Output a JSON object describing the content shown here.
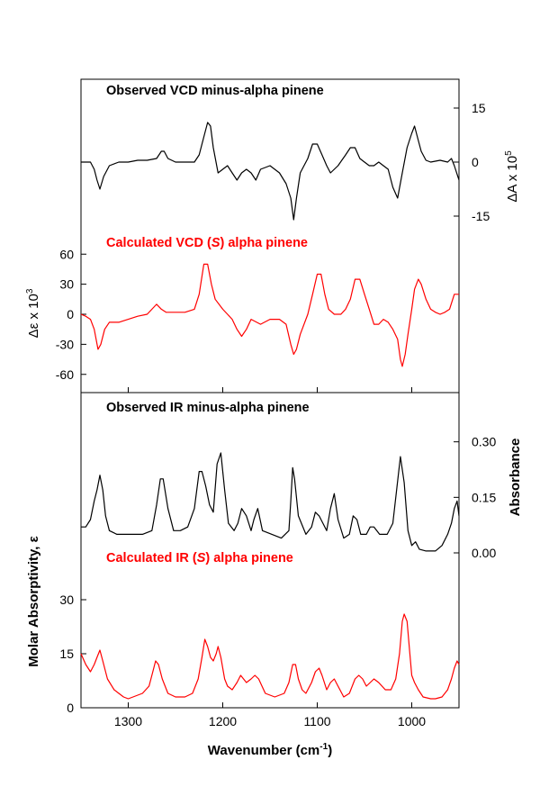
{
  "chart_data": {
    "type": "line",
    "xlabel": "Wavenumber (cm",
    "xlabel_sup": "-1",
    "xlabel_tail": ")",
    "xlim": [
      1350,
      950
    ],
    "xticks": [
      "1300",
      "1200",
      "1100",
      "1000"
    ],
    "colors": {
      "observed": "#000000",
      "calculated": "#ff0000"
    },
    "observed_vcd": {
      "title": "Observed VCD minus-alpha pinene",
      "axis_label": "ΔA x 10",
      "axis_label_sup": "5",
      "axis_side": "right",
      "ylim": [
        -18,
        18
      ],
      "yticks": [
        "15",
        "0",
        "-15"
      ],
      "x": [
        1350,
        1340,
        1336,
        1333,
        1330,
        1326,
        1320,
        1310,
        1300,
        1290,
        1280,
        1270,
        1265,
        1262,
        1258,
        1250,
        1240,
        1230,
        1225,
        1220,
        1216,
        1213,
        1210,
        1205,
        1200,
        1195,
        1190,
        1185,
        1180,
        1175,
        1170,
        1165,
        1160,
        1150,
        1140,
        1133,
        1128,
        1125,
        1122,
        1118,
        1110,
        1105,
        1100,
        1095,
        1090,
        1086,
        1082,
        1078,
        1070,
        1065,
        1060,
        1055,
        1050,
        1045,
        1040,
        1035,
        1030,
        1025,
        1020,
        1015,
        1010,
        1005,
        1000,
        997,
        993,
        990,
        985,
        980,
        970,
        962,
        958,
        955,
        950
      ],
      "y": [
        0,
        0,
        -2,
        -5,
        -7.5,
        -4,
        -1,
        0,
        0,
        0.5,
        0.5,
        1,
        3,
        3,
        1,
        0,
        0,
        0,
        2,
        7,
        11,
        10,
        4,
        -3,
        -2,
        -1,
        -3,
        -5,
        -3,
        -2,
        -3,
        -5,
        -2,
        -1,
        -3,
        -6,
        -10,
        -16,
        -10,
        -3,
        1,
        5,
        5,
        2,
        -1,
        -3,
        -2,
        -1,
        2,
        4,
        4,
        1,
        0,
        -1,
        -1,
        0,
        -1,
        -2,
        -7,
        -10,
        -3,
        4,
        8,
        10,
        6,
        3,
        0.5,
        0,
        0.5,
        0,
        1,
        -1,
        -5
      ]
    },
    "calculated_vcd": {
      "title": "Calculated VCD (S) alpha pinene",
      "title_pre": "Calculated VCD (",
      "title_italic": "S",
      "title_post": ") alpha pinene",
      "axis_label": "Δε x 10",
      "axis_label_sup": "3",
      "axis_side": "left",
      "ylim": [
        -80,
        80
      ],
      "yticks": [
        "60",
        "30",
        "0",
        "-30",
        "-60"
      ],
      "x": [
        1350,
        1345,
        1340,
        1336,
        1332,
        1329,
        1325,
        1320,
        1310,
        1300,
        1290,
        1280,
        1275,
        1270,
        1265,
        1260,
        1250,
        1240,
        1230,
        1225,
        1220,
        1216,
        1212,
        1208,
        1200,
        1195,
        1190,
        1185,
        1180,
        1175,
        1170,
        1160,
        1150,
        1140,
        1133,
        1128,
        1125,
        1122,
        1118,
        1110,
        1105,
        1100,
        1096,
        1092,
        1088,
        1082,
        1075,
        1070,
        1065,
        1060,
        1055,
        1050,
        1045,
        1040,
        1035,
        1030,
        1025,
        1020,
        1015,
        1012,
        1010,
        1007,
        1004,
        1000,
        997,
        993,
        990,
        985,
        980,
        975,
        970,
        965,
        960,
        955,
        950
      ],
      "y": [
        0,
        -2,
        -5,
        -15,
        -35,
        -30,
        -15,
        -8,
        -8,
        -5,
        -2,
        0,
        5,
        10,
        5,
        2,
        2,
        2,
        5,
        20,
        50,
        50,
        30,
        15,
        5,
        0,
        -5,
        -15,
        -22,
        -15,
        -5,
        -10,
        -5,
        -5,
        -10,
        -30,
        -40,
        -35,
        -20,
        0,
        20,
        40,
        40,
        20,
        5,
        0,
        0,
        5,
        15,
        35,
        35,
        20,
        5,
        -10,
        -10,
        -5,
        -8,
        -15,
        -25,
        -45,
        -52,
        -40,
        -20,
        5,
        25,
        35,
        30,
        15,
        5,
        2,
        0,
        2,
        5,
        20,
        20
      ]
    },
    "observed_ir": {
      "title": "Observed IR minus-alpha pinene",
      "axis_label": "Absorbance",
      "axis_side": "right",
      "ylim": [
        0,
        0.36
      ],
      "yticks": [
        "0.30",
        "0.15",
        "0.00"
      ],
      "x": [
        1350,
        1345,
        1340,
        1336,
        1333,
        1330,
        1327,
        1324,
        1320,
        1312,
        1305,
        1295,
        1285,
        1275,
        1270,
        1266,
        1263,
        1258,
        1252,
        1245,
        1237,
        1230,
        1225,
        1222,
        1218,
        1214,
        1210,
        1206,
        1202,
        1198,
        1194,
        1188,
        1184,
        1180,
        1175,
        1170,
        1167,
        1163,
        1158,
        1148,
        1138,
        1130,
        1128,
        1126,
        1124,
        1120,
        1112,
        1106,
        1102,
        1098,
        1094,
        1090,
        1086,
        1082,
        1078,
        1072,
        1066,
        1062,
        1058,
        1054,
        1048,
        1044,
        1040,
        1034,
        1026,
        1020,
        1016,
        1012,
        1008,
        1004,
        1000,
        996,
        992,
        985,
        975,
        968,
        962,
        958,
        955,
        952,
        950
      ],
      "y": [
        0.07,
        0.07,
        0.09,
        0.14,
        0.17,
        0.21,
        0.17,
        0.1,
        0.06,
        0.05,
        0.05,
        0.05,
        0.05,
        0.06,
        0.13,
        0.2,
        0.2,
        0.12,
        0.06,
        0.06,
        0.07,
        0.12,
        0.22,
        0.22,
        0.18,
        0.13,
        0.11,
        0.24,
        0.27,
        0.17,
        0.08,
        0.06,
        0.08,
        0.12,
        0.1,
        0.06,
        0.09,
        0.12,
        0.06,
        0.05,
        0.04,
        0.06,
        0.14,
        0.23,
        0.2,
        0.1,
        0.05,
        0.07,
        0.11,
        0.1,
        0.08,
        0.06,
        0.12,
        0.16,
        0.09,
        0.04,
        0.05,
        0.1,
        0.09,
        0.05,
        0.05,
        0.07,
        0.07,
        0.05,
        0.05,
        0.08,
        0.17,
        0.26,
        0.19,
        0.06,
        0.02,
        0.03,
        0.01,
        0.005,
        0.005,
        0.02,
        0.05,
        0.08,
        0.12,
        0.14,
        0.1
      ]
    },
    "calculated_ir": {
      "title": "Calculated IR (S) alpha pinene",
      "title_pre": "Calculated IR (",
      "title_italic": "S",
      "title_post": ") alpha pinene",
      "axis_label": "Molar Absorptivity, ε",
      "axis_side": "left",
      "ylim": [
        0,
        45
      ],
      "yticks": [
        "30",
        "15",
        "0"
      ],
      "x": [
        1350,
        1345,
        1340,
        1336,
        1333,
        1330,
        1327,
        1322,
        1315,
        1310,
        1305,
        1300,
        1295,
        1285,
        1278,
        1274,
        1271,
        1268,
        1264,
        1258,
        1250,
        1240,
        1232,
        1226,
        1222,
        1219,
        1216,
        1213,
        1210,
        1207,
        1205,
        1202,
        1198,
        1195,
        1190,
        1185,
        1181,
        1178,
        1175,
        1170,
        1166,
        1162,
        1155,
        1145,
        1135,
        1130,
        1126,
        1123,
        1120,
        1116,
        1112,
        1106,
        1102,
        1098,
        1095,
        1090,
        1086,
        1082,
        1078,
        1072,
        1066,
        1060,
        1056,
        1052,
        1048,
        1044,
        1040,
        1035,
        1028,
        1022,
        1017,
        1013,
        1010,
        1008,
        1005,
        1002,
        1000,
        997,
        993,
        988,
        980,
        975,
        968,
        962,
        958,
        955,
        952,
        950
      ],
      "y": [
        15,
        12,
        10,
        12,
        14,
        16,
        13,
        8,
        5,
        4,
        3,
        2.5,
        3,
        4,
        6,
        10,
        13,
        12,
        8,
        4,
        3,
        3,
        4,
        8,
        14,
        19,
        17,
        14,
        13,
        15,
        17,
        14,
        8,
        6,
        5,
        7,
        9,
        8,
        7,
        8,
        9,
        8,
        4,
        3,
        4,
        7,
        12,
        12,
        8,
        5,
        4,
        7,
        10,
        11,
        9,
        5,
        7,
        8,
        6,
        3,
        4,
        8,
        9,
        8,
        6,
        7,
        8,
        7,
        5,
        5,
        8,
        15,
        24,
        26,
        24,
        15,
        9,
        7,
        5,
        3,
        2.5,
        2.5,
        3,
        5,
        8,
        11,
        13,
        12
      ]
    }
  }
}
